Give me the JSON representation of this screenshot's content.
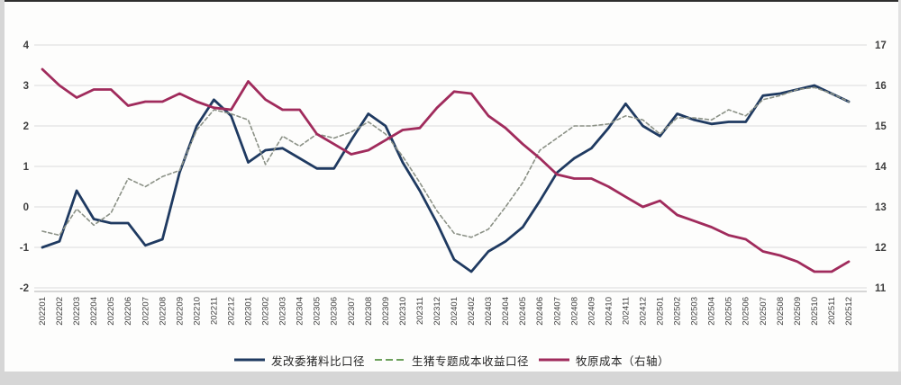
{
  "window": {
    "background_color": "#ffffff",
    "frame_color": "#d6d6d6"
  },
  "chart_data": {
    "type": "line",
    "title": "",
    "xlabel": "",
    "ylabel": "",
    "grid": true,
    "legend_position": "bottom-center",
    "x": [
      "202201",
      "202202",
      "202203",
      "202204",
      "202205",
      "202206",
      "202207",
      "202208",
      "202209",
      "202210",
      "202211",
      "202212",
      "202301",
      "202302",
      "202303",
      "202304",
      "202305",
      "202306",
      "202307",
      "202308",
      "202309",
      "202310",
      "202311",
      "202312",
      "202401",
      "202402",
      "202403",
      "202404",
      "202405",
      "202406",
      "202407",
      "202408",
      "202409",
      "202410",
      "202411",
      "202412",
      "202501",
      "202502",
      "202503",
      "202504",
      "202505",
      "202506",
      "202507",
      "202508",
      "202509",
      "202510",
      "202511",
      "202512"
    ],
    "left_axis": {
      "min": -2,
      "max": 4,
      "ticks": [
        "4",
        "3",
        "2",
        "1",
        "0",
        "-1",
        "-2"
      ]
    },
    "right_axis": {
      "min": 11,
      "max": 17,
      "ticks": [
        "17",
        "16",
        "15",
        "14",
        "13",
        "12",
        "11"
      ]
    },
    "series": [
      {
        "name": "发改委猪料比口径",
        "axis": "left",
        "style": "solid",
        "line_color": "#1f3a61",
        "legend_color": "#1f3a61",
        "width": 2.8,
        "values": [
          -1.0,
          -0.85,
          0.4,
          -0.3,
          -0.4,
          -0.4,
          -0.95,
          -0.8,
          0.85,
          2.0,
          2.65,
          2.25,
          1.1,
          1.4,
          1.45,
          1.2,
          0.95,
          0.95,
          1.65,
          2.3,
          2.0,
          1.1,
          0.4,
          -0.4,
          -1.3,
          -1.6,
          -1.1,
          -0.85,
          -0.5,
          0.15,
          0.85,
          1.2,
          1.45,
          1.95,
          2.55,
          2.0,
          1.75,
          2.3,
          2.15,
          2.05,
          2.1,
          2.1,
          2.75,
          2.8,
          2.9,
          3.0,
          2.8,
          2.6
        ]
      },
      {
        "name": "生猪专题成本收益口径",
        "axis": "left",
        "style": "dashed",
        "line_color": "#8b9186",
        "legend_color": "#6ca05b",
        "width": 1.6,
        "values": [
          -0.6,
          -0.7,
          -0.05,
          -0.45,
          -0.15,
          0.7,
          0.5,
          0.75,
          0.9,
          1.9,
          2.4,
          2.3,
          2.15,
          1.05,
          1.75,
          1.5,
          1.8,
          1.7,
          1.85,
          2.1,
          1.8,
          1.25,
          0.6,
          -0.1,
          -0.65,
          -0.75,
          -0.55,
          0.0,
          0.6,
          1.4,
          1.7,
          2.0,
          2.0,
          2.05,
          2.25,
          2.15,
          1.8,
          2.2,
          2.2,
          2.15,
          2.4,
          2.25,
          2.65,
          2.75,
          2.9,
          2.95,
          2.8,
          2.6
        ]
      },
      {
        "name": "牧原成本（右轴）",
        "axis": "right",
        "style": "solid",
        "line_color": "#a02b5c",
        "legend_color": "#a02b5c",
        "width": 2.8,
        "values": [
          16.4,
          16.0,
          15.7,
          15.9,
          15.9,
          15.5,
          15.6,
          15.6,
          15.8,
          15.6,
          15.45,
          15.4,
          16.1,
          15.65,
          15.4,
          15.4,
          14.8,
          14.55,
          14.3,
          14.4,
          14.65,
          14.9,
          14.95,
          15.45,
          15.85,
          15.8,
          15.25,
          14.95,
          14.55,
          14.2,
          13.8,
          13.7,
          13.7,
          13.5,
          13.25,
          13.0,
          13.15,
          12.8,
          12.65,
          12.5,
          12.3,
          12.2,
          11.9,
          11.8,
          11.65,
          11.4,
          11.4,
          11.65
        ]
      }
    ],
    "colors": {
      "grid": "#dcdcdc",
      "axis_line": "#bfbfbf",
      "tick_text": "#3f3f3f"
    }
  }
}
